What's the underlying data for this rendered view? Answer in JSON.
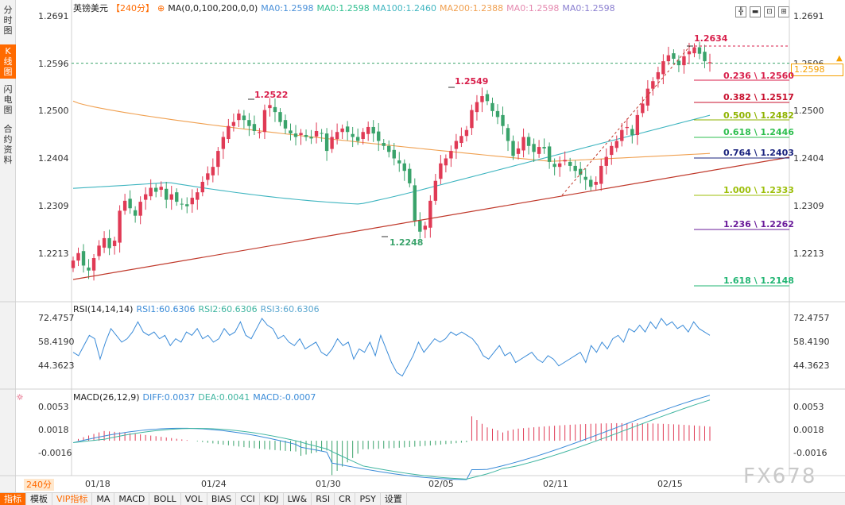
{
  "left_tabs": [
    {
      "label": "分时图",
      "chars": [
        "分",
        "时",
        "图"
      ]
    },
    {
      "label": "K线图",
      "chars": [
        "K",
        "线",
        "图"
      ]
    },
    {
      "label": "闪电图",
      "chars": [
        "闪",
        "电",
        "图"
      ]
    },
    {
      "label": "合约资料",
      "chars": [
        "合",
        "约",
        "资",
        "料"
      ]
    }
  ],
  "header": {
    "symbol": "英镑美元",
    "period": "【240分】",
    "ma_label": "MA(0,0,100,200,0,0)",
    "ma0_a": "MA0:1.2598",
    "ma0_b": "MA0:1.2598",
    "ma100": "MA100:1.2460",
    "ma200": "MA200:1.2388",
    "ma0_c": "MA0:1.2598",
    "ma0_d": "MA0:1.2598"
  },
  "price_axis": {
    "labels": [
      "1.2691",
      "1.2596",
      "1.2500",
      "1.2404",
      "1.2309",
      "1.2213"
    ],
    "right_labels": [
      "1.2691",
      "1.2596",
      "1.2500",
      "1.2404",
      "1.2309",
      "1.2213"
    ],
    "current": "1.2598",
    "dashed_label": "1.2596"
  },
  "annotations": {
    "high_peak": "1.2634",
    "peak_a": "1.2522",
    "peak_b": "1.2549",
    "low_a": "1.2248"
  },
  "fib_levels": [
    {
      "label": "0.236 \\ 1.2560",
      "color": "#d81e4a"
    },
    {
      "label": "0.382 \\ 1.2517",
      "color": "#c8102e"
    },
    {
      "label": "0.500 \\ 1.2482",
      "color": "#8fb300"
    },
    {
      "label": "0.618 \\ 1.2446",
      "color": "#2fbf4f"
    },
    {
      "label": "0.764 \\ 1.2403",
      "color": "#1a237e"
    },
    {
      "label": "1.000 \\ 1.2333",
      "color": "#9dbf0a"
    },
    {
      "label": "1.236 \\ 1.2262",
      "color": "#6a1b9a"
    },
    {
      "label": "1.618 \\ 1.2148",
      "color": "#22b573"
    }
  ],
  "rsi": {
    "label": "RSI(14,14,14)",
    "rsi1": "RSI1:60.6306",
    "rsi2": "RSI2:60.6306",
    "rsi3": "RSI3:60.6306",
    "left_ticks": [
      "72.4757",
      "58.4190",
      "44.3623"
    ],
    "right_ticks": [
      "72.4757",
      "58.4190",
      "44.3623"
    ],
    "values": [
      52,
      50,
      56,
      62,
      60,
      48,
      58,
      66,
      62,
      58,
      60,
      64,
      70,
      64,
      62,
      64,
      60,
      62,
      56,
      60,
      58,
      64,
      62,
      66,
      60,
      62,
      58,
      60,
      66,
      62,
      64,
      70,
      62,
      60,
      66,
      72,
      68,
      66,
      60,
      62,
      58,
      56,
      60,
      54,
      56,
      58,
      52,
      50,
      54,
      60,
      56,
      58,
      48,
      54,
      52,
      58,
      50,
      62,
      54,
      46,
      40,
      38,
      44,
      50,
      58,
      52,
      56,
      60,
      58,
      60,
      64,
      62,
      64,
      62,
      60,
      56,
      50,
      48,
      52,
      56,
      50,
      52,
      46,
      48,
      50,
      52,
      48,
      46,
      50,
      48,
      44,
      46,
      48,
      50,
      52,
      46,
      56,
      52,
      58,
      54,
      60,
      62,
      58,
      66,
      64,
      68,
      64,
      70,
      66,
      72,
      68,
      70,
      66,
      68,
      64,
      70,
      66,
      64,
      62
    ]
  },
  "macd": {
    "label": "MACD(26,12,9)",
    "diff": "DIFF:0.0037",
    "dea": "DEA:0.0041",
    "macd": "MACD:-0.0007",
    "left_ticks": [
      "0.0053",
      "0.0018",
      "-0.0016"
    ],
    "right_ticks": [
      "0.0053",
      "0.0018",
      "-0.0016"
    ]
  },
  "x_axis": {
    "period_badge": "240分",
    "dates": [
      "01/18",
      "01/24",
      "01/30",
      "02/05",
      "02/11",
      "02/15"
    ]
  },
  "watermark": "FX678",
  "bottom_tabs": [
    "指标",
    "模板",
    "VIP指标",
    "MA",
    "MACD",
    "BOLL",
    "VOL",
    "BIAS",
    "CCI",
    "KDJ",
    "LW&",
    "RSI",
    "CR",
    "PSY",
    "设置"
  ],
  "colors": {
    "up": "#e03a55",
    "down": "#3aa36b",
    "ma100": "#3fb5c0",
    "ma200": "#f0a050",
    "trend": "#c0392b",
    "accent": "#ff6a00"
  },
  "candles_close": [
    1.22,
    1.2215,
    1.219,
    1.218,
    1.2205,
    1.223,
    1.2245,
    1.2225,
    1.224,
    1.23,
    1.232,
    1.2305,
    1.229,
    1.2318,
    1.2333,
    1.2346,
    1.2338,
    1.2348,
    1.2322,
    1.2333,
    1.2318,
    1.2313,
    1.2309,
    1.2326,
    1.2337,
    1.2358,
    1.2375,
    1.2388,
    1.242,
    1.2448,
    1.247,
    1.2478,
    1.2495,
    1.2482,
    1.247,
    1.246,
    1.2458,
    1.2502,
    1.2512,
    1.2498,
    1.2478,
    1.2465,
    1.2455,
    1.2448,
    1.2456,
    1.2448,
    1.2445,
    1.246,
    1.2455,
    1.242,
    1.2448,
    1.2458,
    1.2465,
    1.2458,
    1.2448,
    1.244,
    1.2458,
    1.2468,
    1.2455,
    1.244,
    1.243,
    1.2418,
    1.2405,
    1.2395,
    1.238,
    1.2355,
    1.228,
    1.2258,
    1.227,
    1.232,
    1.236,
    1.2395,
    1.2405,
    1.242,
    1.244,
    1.245,
    1.2462,
    1.2502,
    1.2518,
    1.253,
    1.252,
    1.25,
    1.2488,
    1.247,
    1.244,
    1.241,
    1.2425,
    1.2448,
    1.243,
    1.2418,
    1.2428,
    1.2425,
    1.2398,
    1.2388,
    1.2395,
    1.2402,
    1.239,
    1.238,
    1.2372,
    1.2362,
    1.2348,
    1.2358,
    1.239,
    1.2408,
    1.243,
    1.244,
    1.2462,
    1.2468,
    1.2452,
    1.2492,
    1.2515,
    1.2545,
    1.256,
    1.2578,
    1.26,
    1.2612,
    1.2605,
    1.2592,
    1.261,
    1.262,
    1.2628,
    1.2615,
    1.26,
    1.2598
  ]
}
